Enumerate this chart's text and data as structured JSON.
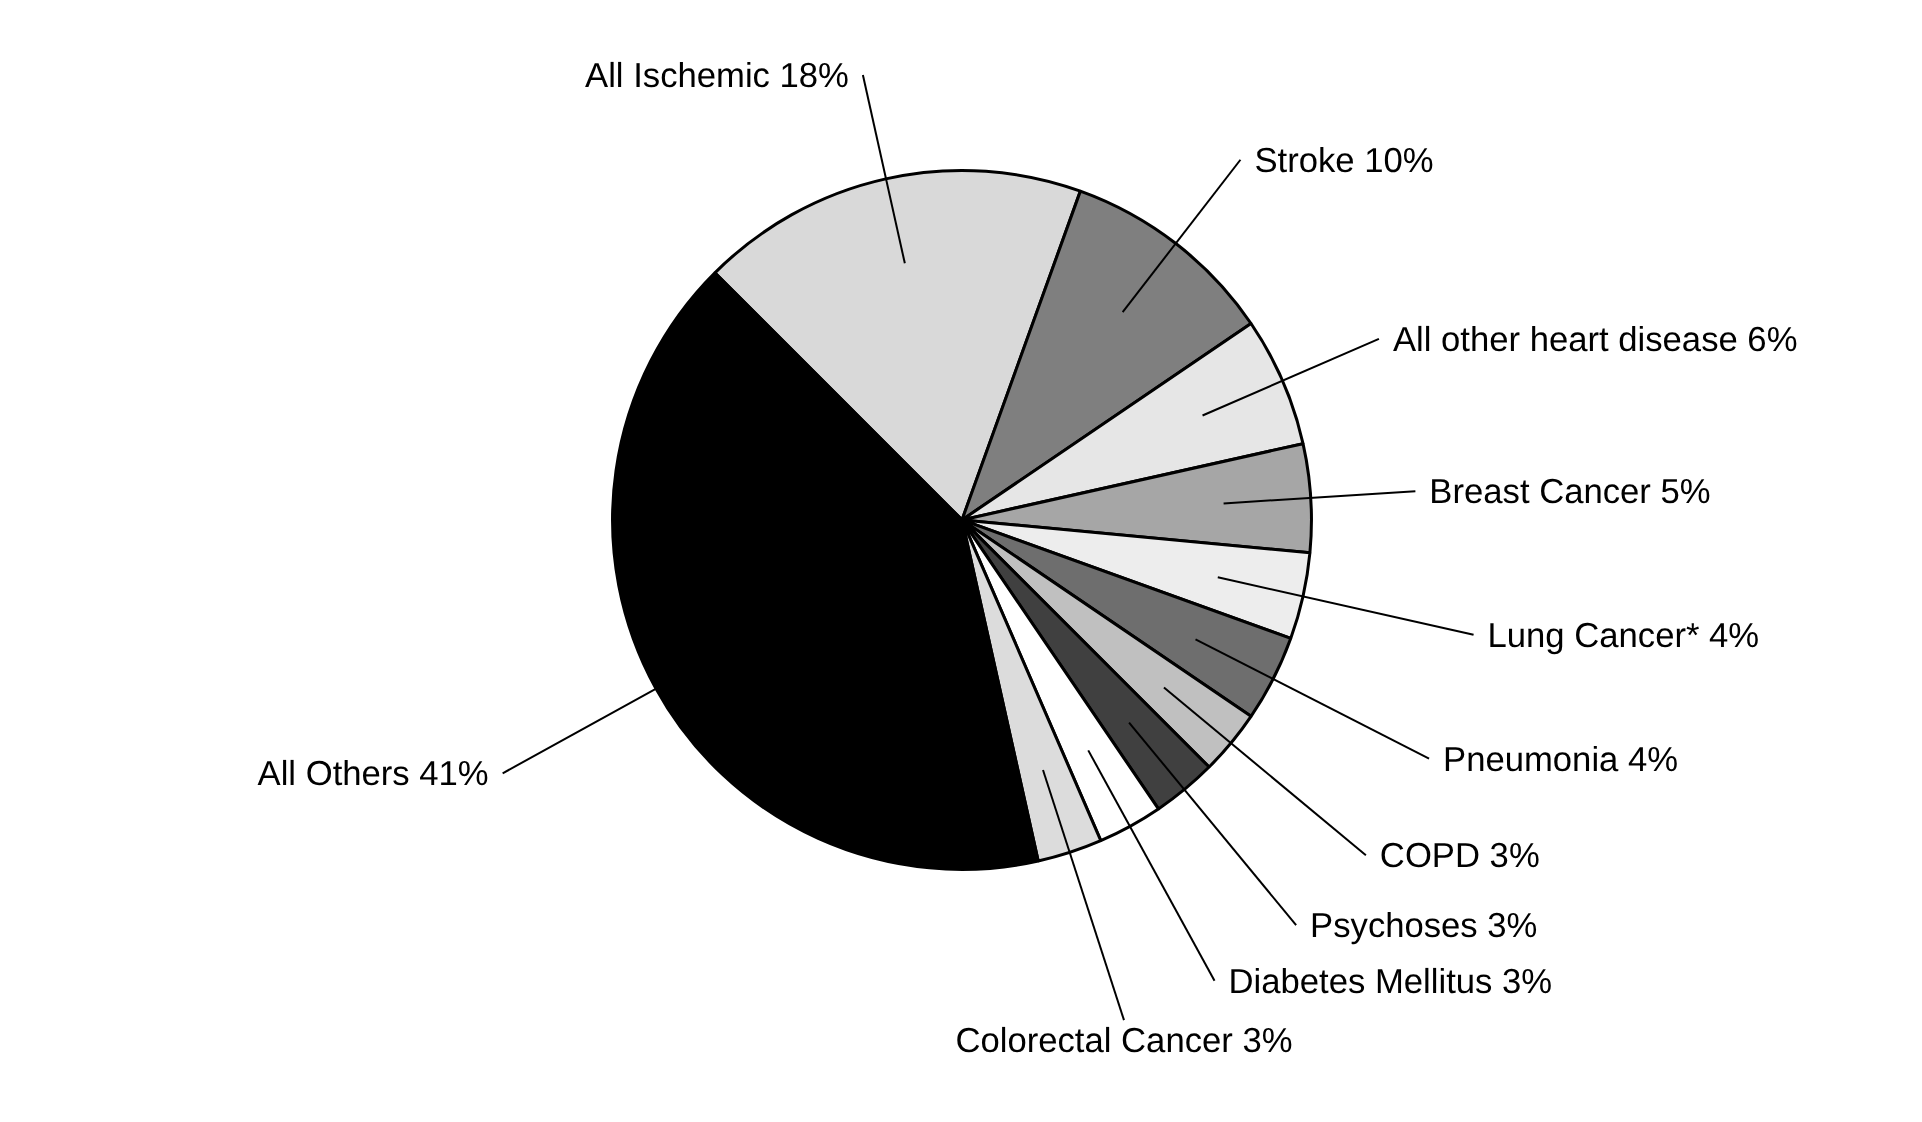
{
  "chart_data": {
    "type": "pie",
    "categories": [
      "All Ischemic",
      "Stroke",
      "All other heart disease",
      "Breast Cancer",
      "Lung Cancer*",
      "Pneumonia",
      "COPD",
      "Psychoses",
      "Diabetes Mellitus",
      "Colorectal Cancer",
      "All Others"
    ],
    "values": [
      18,
      10,
      6,
      5,
      4,
      4,
      3,
      3,
      3,
      3,
      41
    ],
    "value_labels": [
      "18%",
      "10%",
      "6%",
      "5%",
      "4%",
      "4%",
      "3%",
      "3%",
      "3%",
      "3%",
      "41%"
    ],
    "colors": [
      "#d9d9d9",
      "#7f7f7f",
      "#e6e6e6",
      "#a6a6a6",
      "#ededed",
      "#6e6e6e",
      "#c0c0c0",
      "#404040",
      "#ffffff",
      "#dcdcdc",
      "#000000"
    ],
    "legend": false
  }
}
